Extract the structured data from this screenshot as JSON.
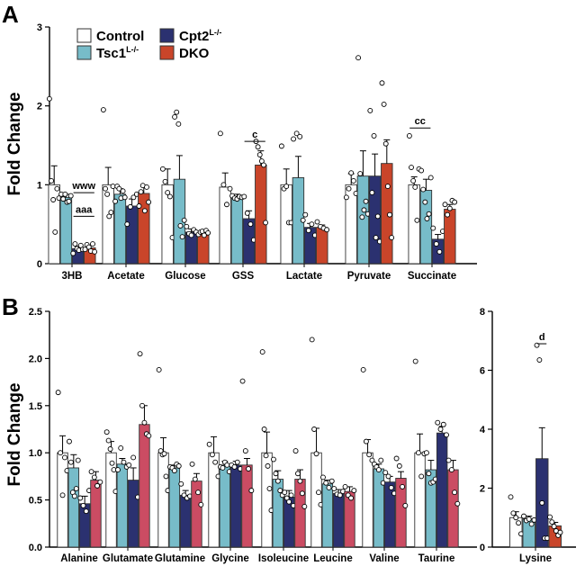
{
  "panels": {
    "A": "A",
    "B": "B"
  },
  "legend": [
    {
      "label": "Control",
      "sup": "",
      "color": "#ffffff"
    },
    {
      "label": "Tsc1",
      "sup": "L-/-",
      "color": "#77bcc9"
    },
    {
      "label": "Cpt2",
      "sup": "L-/-",
      "color": "#2b3170"
    },
    {
      "label": "DKO",
      "sup": "",
      "color": "#c9452a"
    }
  ],
  "chart_data": [
    {
      "id": "A",
      "type": "bar",
      "ylabel": "Fold Change",
      "ylim": [
        0,
        3
      ],
      "yticks": [
        0,
        1,
        2,
        3
      ],
      "series_names": [
        "Control",
        "Tsc1L-/-",
        "Cpt2L-/-",
        "DKO"
      ],
      "colors": [
        "#ffffff",
        "#77bcc9",
        "#2b3170",
        "#c9452a"
      ],
      "categories": [
        "3HB",
        "Acetate",
        "Glucose",
        "GSS",
        "Lactate",
        "Pyruvate",
        "Succinate"
      ],
      "means": [
        [
          1.0,
          0.84,
          0.19,
          0.2
        ],
        [
          1.0,
          0.88,
          0.73,
          0.89
        ],
        [
          1.0,
          1.07,
          0.4,
          0.39
        ],
        [
          0.97,
          0.84,
          0.57,
          1.25
        ],
        [
          1.0,
          1.09,
          0.46,
          0.46
        ],
        [
          1.0,
          1.11,
          1.11,
          1.27
        ],
        [
          1.0,
          0.93,
          0.31,
          0.69
        ]
      ],
      "errors": [
        [
          0.24,
          0.04,
          0.03,
          0.03
        ],
        [
          0.22,
          0.07,
          0.09,
          0.1
        ],
        [
          0.2,
          0.3,
          0.04,
          0.03
        ],
        [
          0.18,
          0.04,
          0.1,
          0.18
        ],
        [
          0.2,
          0.27,
          0.05,
          0.03
        ],
        [
          0.14,
          0.32,
          0.28,
          0.3
        ],
        [
          0.1,
          0.14,
          0.06,
          0.06
        ]
      ],
      "points": [
        [
          [
            2.09,
            1.05,
            0.81,
            0.4,
            0.95,
            0.83
          ],
          [
            0.88,
            0.82,
            0.88,
            0.78,
            0.79,
            0.86
          ],
          [
            0.13,
            0.25,
            0.19,
            0.17,
            0.23,
            0.18
          ],
          [
            0.18,
            0.24,
            0.21,
            0.16,
            0.25,
            0.15
          ]
        ],
        [
          [
            1.95,
            0.95,
            0.88,
            0.6,
            0.65,
            0.98
          ],
          [
            0.79,
            0.98,
            0.95,
            0.83,
            0.92,
            0.84
          ],
          [
            0.5,
            0.72,
            0.84,
            0.88
          ],
          [
            0.73,
            0.91,
            0.99,
            0.67,
            0.97,
            0.78
          ]
        ],
        [
          [
            1.2,
            1.04,
            0.9,
            0.85,
            0.33
          ],
          [
            1.86,
            1.92,
            1.77,
            0.48,
            0.34,
            0.55
          ],
          [
            0.47,
            0.38,
            0.36,
            0.43,
            0.4
          ],
          [
            0.37,
            0.4,
            0.41,
            0.36,
            0.42,
            0.39
          ]
        ],
        [
          [
            1.65,
            1.0,
            0.75,
            0.95
          ],
          [
            0.86,
            0.83,
            0.82,
            0.85,
            0.84
          ],
          [
            0.85,
            0.64,
            0.5,
            0.3
          ],
          [
            1.55,
            1.48,
            1.38,
            1.3,
            1.25,
            0.52
          ]
        ],
        [
          [
            1.49,
            0.95,
            0.98,
            0.52,
            0.52
          ],
          [
            1.58,
            1.65,
            1.61,
            0.55
          ],
          [
            0.62,
            0.42,
            0.5,
            0.36
          ],
          [
            0.53,
            0.47,
            0.45,
            0.43
          ]
        ],
        [
          [
            0.84,
            0.95,
            1.15,
            1.05,
            0.89
          ],
          [
            2.61,
            1.14,
            0.59,
            0.68,
            0.79,
            0.63
          ],
          [
            1.94,
            0.9,
            1.62,
            0.33,
            0.6,
            0.28
          ],
          [
            2.29,
            2.02,
            1.52,
            0.98,
            0.62,
            0.33
          ]
        ],
        [
          [
            1.62,
            1.22,
            1.05,
            0.97,
            0.55,
            1.2
          ],
          [
            1.18,
            0.94,
            0.78,
            0.57,
            0.63,
            1.09
          ],
          [
            0.45,
            0.25,
            0.15,
            0.41
          ],
          [
            0.75,
            0.62,
            0.7,
            0.8,
            0.78
          ]
        ]
      ],
      "annotations": [
        {
          "category": 0,
          "text": "www",
          "from": 2,
          "to": 3,
          "y": 0.9
        },
        {
          "category": 0,
          "text": "aaa",
          "from": 2,
          "to": 3,
          "y": 0.6
        },
        {
          "category": 3,
          "text": "c",
          "from": 2,
          "to": 3,
          "y": 1.55
        },
        {
          "category": 6,
          "text": "cc",
          "from": 0,
          "to": 1,
          "y": 1.72
        }
      ]
    },
    {
      "id": "B",
      "type": "bar",
      "ylabel": "Fold Change",
      "ylim": [
        0,
        2.5
      ],
      "yticks": [
        0,
        0.5,
        1,
        1.5,
        2,
        2.5
      ],
      "ytick_labels": [
        "0.0",
        "0.5",
        "1.0",
        "1.5",
        "2.0",
        "2.5"
      ],
      "series_names": [
        "Control",
        "Tsc1L-/-",
        "Cpt2L-/-",
        "DKO"
      ],
      "colors": [
        "#ffffff",
        "#77bcc9",
        "#2b3170",
        "#cb4c63"
      ],
      "categories": [
        "Alanine",
        "Glutamate",
        "Glutamine",
        "Glycine",
        "Isoleucine",
        "Leucine",
        "Valine",
        "Taurine"
      ],
      "means": [
        [
          1.0,
          0.84,
          0.46,
          0.71
        ],
        [
          1.0,
          0.88,
          0.71,
          1.3
        ],
        [
          1.0,
          0.84,
          0.55,
          0.7
        ],
        [
          1.0,
          0.87,
          0.87,
          0.87
        ],
        [
          1.0,
          0.72,
          0.53,
          0.72
        ],
        [
          1.0,
          0.67,
          0.57,
          0.59
        ],
        [
          1.0,
          0.83,
          0.69,
          0.73
        ],
        [
          1.0,
          0.82,
          1.21,
          0.82
        ]
      ],
      "errors": [
        [
          0.18,
          0.14,
          0.08,
          0.09
        ],
        [
          0.12,
          0.06,
          0.13,
          0.2
        ],
        [
          0.16,
          0.03,
          0.05,
          0.08
        ],
        [
          0.17,
          0.04,
          0.04,
          0.07
        ],
        [
          0.22,
          0.09,
          0.07,
          0.1
        ],
        [
          0.26,
          0.04,
          0.04,
          0.05
        ],
        [
          0.14,
          0.05,
          0.06,
          0.07
        ],
        [
          0.2,
          0.1,
          0.07,
          0.1
        ]
      ],
      "points": [
        [
          [
            1.64,
            1.0,
            0.55,
            0.95,
            0.81
          ],
          [
            1.12,
            0.9,
            0.58,
            0.54,
            0.62,
            0.92
          ],
          [
            0.52,
            0.44,
            0.38,
            0.6
          ],
          [
            0.8,
            0.74,
            0.65,
            0.69
          ]
        ],
        [
          [
            1.22,
            1.13,
            1.04,
            0.89,
            0.82,
            0.59
          ],
          [
            0.82,
            1.05,
            0.9,
            0.85
          ],
          [
            0.87,
            0.95,
            0.53
          ],
          [
            2.05,
            1.5,
            1.32,
            1.2,
            1.18
          ]
        ],
        [
          [
            1.88,
            1.02,
            0.98,
            0.99,
            0.75,
            0.6
          ],
          [
            0.85,
            0.84,
            0.81,
            0.88,
            0.86
          ],
          [
            0.67,
            0.55,
            0.52,
            0.54
          ],
          [
            0.88,
            0.72,
            0.58,
            0.45
          ]
        ],
        [
          [
            1.09,
            0.98,
            0.9,
            0.75
          ],
          [
            0.85,
            0.84,
            0.9,
            0.87,
            0.8
          ],
          [
            0.87,
            0.85,
            0.9,
            0.83
          ],
          [
            1.76,
            1.02,
            0.83,
            0.6
          ]
        ],
        [
          [
            2.07,
            1.25,
            0.97,
            0.86,
            0.62,
            0.39
          ],
          [
            0.93,
            0.78,
            0.7,
            0.6,
            0.55
          ],
          [
            0.58,
            0.52,
            0.48,
            0.55,
            0.44
          ],
          [
            1.02,
            0.78,
            0.7,
            0.57,
            0.43
          ]
        ],
        [
          [
            2.2,
            1.25,
            0.99,
            0.58,
            0.45
          ],
          [
            0.74,
            0.68,
            0.63,
            0.7
          ],
          [
            0.62,
            0.56,
            0.55,
            0.59
          ],
          [
            0.64,
            0.55,
            0.52,
            0.6
          ]
        ],
        [
          [
            1.88,
            1.12,
            0.98,
            0.92
          ],
          [
            0.88,
            0.85,
            0.82,
            0.92,
            0.68
          ],
          [
            0.79,
            0.75,
            0.63,
            0.57
          ],
          [
            0.94,
            0.86,
            0.64,
            0.44
          ]
        ],
        [
          [
            1.97,
            1.0,
            0.75,
            0.99
          ],
          [
            1.0,
            0.78,
            0.68,
            0.69,
            0.72
          ],
          [
            1.32,
            1.25,
            1.3,
            1.19
          ],
          [
            0.92,
            0.82,
            0.58,
            0.46
          ]
        ]
      ]
    },
    {
      "id": "B-lysine",
      "type": "bar",
      "ylim": [
        0,
        8
      ],
      "yticks": [
        0,
        2,
        4,
        6,
        8
      ],
      "series_names": [
        "Control",
        "Tsc1L-/-",
        "Cpt2L-/-",
        "DKO"
      ],
      "colors": [
        "#ffffff",
        "#77bcc9",
        "#2b3170",
        "#c9452a"
      ],
      "categories": [
        "Lysine"
      ],
      "means": [
        [
          1.0,
          0.95,
          3.0,
          0.72
        ]
      ],
      "errors": [
        [
          0.2,
          0.1,
          1.05,
          0.12
        ]
      ],
      "points": [
        [
          [
            1.7,
            1.15,
            1.0,
            0.82,
            0.45
          ],
          [
            1.05,
            0.9,
            0.95,
            0.78,
            0.92
          ],
          [
            6.85,
            6.35,
            1.5,
            0.3,
            0.3
          ],
          [
            1.02,
            0.85,
            0.7,
            0.55,
            0.4,
            0.5
          ]
        ]
      ],
      "annotations": [
        {
          "category": 0,
          "text": "d",
          "from": 2,
          "to": 2,
          "y": 6.9
        }
      ]
    }
  ]
}
